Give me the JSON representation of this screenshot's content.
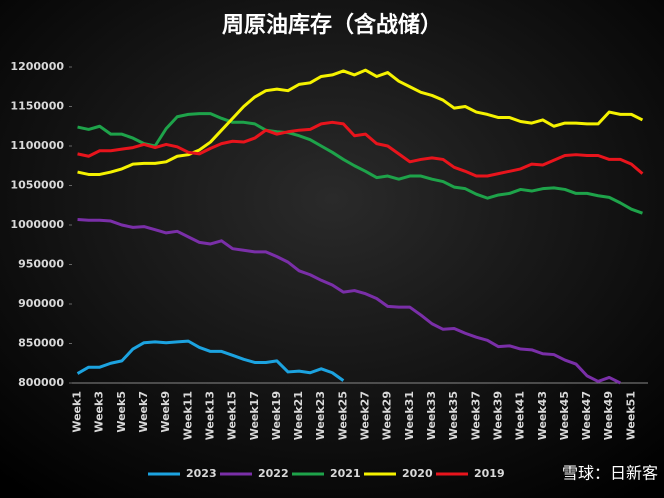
{
  "chart_data": {
    "type": "line",
    "title": "周原油库存（含战储）",
    "categories": [
      "Week1",
      null,
      "Week3",
      null,
      "Week5",
      null,
      "Week7",
      null,
      "Week9",
      null,
      "Week11",
      null,
      "Week13",
      null,
      "Week15",
      null,
      "Week17",
      null,
      "Week19",
      null,
      "Week21",
      null,
      "Week23",
      null,
      "Week25",
      null,
      "Week27",
      null,
      "Week29",
      null,
      "Week31",
      null,
      "Week33",
      null,
      "Week35",
      null,
      "Week37",
      null,
      "Week39",
      null,
      "Week41",
      null,
      "Week43",
      null,
      "Week45",
      null,
      "Week47",
      null,
      "Week49",
      null,
      "Week51",
      null
    ],
    "series": [
      {
        "name": "2023",
        "color": "#1ca3e0",
        "values": [
          812000,
          820000,
          820000,
          825000,
          828000,
          843000,
          851000,
          852000,
          851000,
          852000,
          853000,
          845000,
          840000,
          840000,
          835000,
          830000,
          826000,
          826000,
          828000,
          814000,
          815000,
          813000,
          818000,
          813000,
          803000,
          null,
          null,
          null,
          null,
          null,
          null,
          null,
          null,
          null,
          null,
          null,
          null,
          null,
          null,
          null,
          null,
          null,
          null,
          null,
          null,
          null,
          null,
          null,
          null,
          null,
          null,
          null
        ]
      },
      {
        "name": "2022",
        "color": "#7a2fa8",
        "values": [
          1007000,
          1006000,
          1006000,
          1005000,
          1000000,
          997000,
          998000,
          994000,
          990000,
          992000,
          985000,
          978000,
          976000,
          980000,
          970000,
          968000,
          966000,
          966000,
          960000,
          953000,
          942000,
          937000,
          930000,
          924000,
          915000,
          917000,
          913000,
          907000,
          897000,
          896000,
          896000,
          886000,
          875000,
          868000,
          869000,
          863000,
          858000,
          854000,
          846000,
          847000,
          843000,
          842000,
          837000,
          836000,
          829000,
          824000,
          809000,
          802000,
          807000,
          800000,
          null,
          null
        ]
      },
      {
        "name": "2021",
        "color": "#1ea34a",
        "values": [
          1124000,
          1121000,
          1125000,
          1115000,
          1115000,
          1110000,
          1103000,
          1100000,
          1122000,
          1137000,
          1140000,
          1141000,
          1141000,
          1135000,
          1130000,
          1130000,
          1128000,
          1120000,
          1118000,
          1117000,
          1113000,
          1108000,
          1100000,
          1092000,
          1083000,
          1075000,
          1068000,
          1060000,
          1062000,
          1058000,
          1062000,
          1062000,
          1058000,
          1055000,
          1048000,
          1046000,
          1039000,
          1034000,
          1038000,
          1040000,
          1045000,
          1043000,
          1046000,
          1047000,
          1045000,
          1040000,
          1040000,
          1037000,
          1035000,
          1028000,
          1020000,
          1015000
        ]
      },
      {
        "name": "2020",
        "color": "#f5f200",
        "values": [
          1067000,
          1064000,
          1064000,
          1067000,
          1071000,
          1077000,
          1078000,
          1078000,
          1080000,
          1087000,
          1089000,
          1095000,
          1105000,
          1120000,
          1135000,
          1150000,
          1162000,
          1170000,
          1172000,
          1170000,
          1178000,
          1180000,
          1188000,
          1190000,
          1195000,
          1190000,
          1196000,
          1188000,
          1193000,
          1182000,
          1175000,
          1168000,
          1164000,
          1158000,
          1148000,
          1150000,
          1143000,
          1140000,
          1136000,
          1136000,
          1131000,
          1129000,
          1133000,
          1125000,
          1129000,
          1129000,
          1128000,
          1128000,
          1143000,
          1140000,
          1140000,
          1133000
        ]
      },
      {
        "name": "2019",
        "color": "#e8141c",
        "values": [
          1090000,
          1087000,
          1094000,
          1094000,
          1096000,
          1098000,
          1102000,
          1098000,
          1102000,
          1099000,
          1092000,
          1090000,
          1097000,
          1103000,
          1106000,
          1105000,
          1110000,
          1120000,
          1115000,
          1118000,
          1120000,
          1121000,
          1128000,
          1130000,
          1128000,
          1113000,
          1115000,
          1103000,
          1100000,
          1090000,
          1080000,
          1083000,
          1085000,
          1083000,
          1073000,
          1068000,
          1062000,
          1062000,
          1065000,
          1068000,
          1071000,
          1077000,
          1076000,
          1082000,
          1088000,
          1089000,
          1088000,
          1088000,
          1083000,
          1083000,
          1077000,
          1065000
        ]
      }
    ],
    "ylim": [
      800000,
      1200000
    ],
    "yticks": [
      800000,
      850000,
      900000,
      950000,
      1000000,
      1050000,
      1100000,
      1150000,
      1200000
    ],
    "grid": false,
    "legend": "bottom",
    "watermark": "雪球：日新客"
  }
}
